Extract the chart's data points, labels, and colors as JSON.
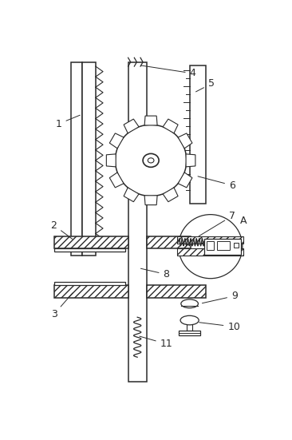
{
  "bg_color": "#ffffff",
  "line_color": "#2a2a2a",
  "fig_width": 3.66,
  "fig_height": 5.51,
  "dpi": 100,
  "xlim": [
    0,
    366
  ],
  "ylim": [
    0,
    551
  ]
}
